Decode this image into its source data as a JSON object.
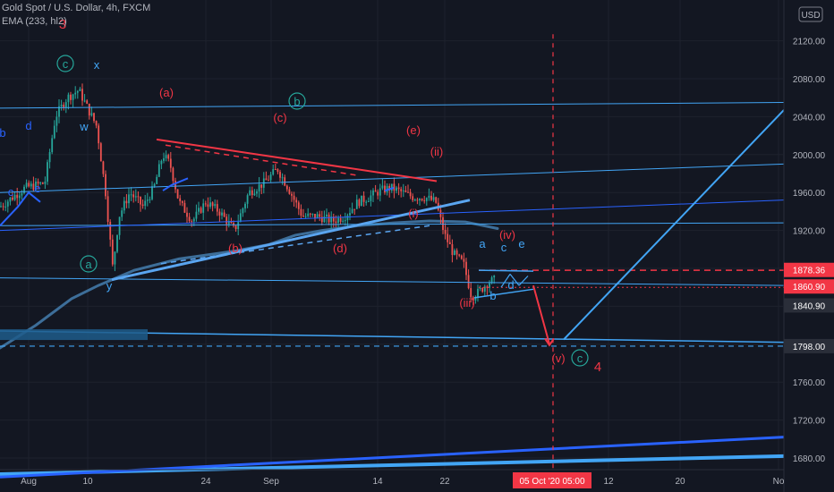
{
  "header": {
    "symbol_line": "Gold Spot / U.S. Dollar, 4h, FXCM",
    "indicator_line": "EMA (233, hl2)",
    "currency_badge": "USD"
  },
  "chart_data": {
    "type": "candlestick",
    "y_axis": {
      "ylim": [
        1660,
        2130
      ],
      "ticks": [
        1680,
        1720,
        1760,
        1800,
        1840,
        1880,
        1920,
        1960,
        2000,
        2040,
        2080,
        2120
      ],
      "tick_labels": [
        "1680.00",
        "1720.00",
        "1760.00",
        "1800.00",
        "1840.00",
        "1880.00",
        "1920.00",
        "1960.00",
        "2000.00",
        "2040.00",
        "2080.00",
        "2120.00"
      ]
    },
    "x_axis": {
      "tick_labels": [
        "Aug",
        "10",
        "24",
        "Sep",
        "14",
        "22",
        "12",
        "20",
        "No"
      ],
      "crosshair_label": "05 Oct '20   05:00"
    },
    "price_labels": [
      {
        "value": 1878.36,
        "text": "1878.36",
        "color": "#f23645"
      },
      {
        "value": 1860.9,
        "text": "1860.90",
        "color": "#f23645"
      },
      {
        "value": 1840.9,
        "text": "1840.90",
        "color": "#2a2e39"
      },
      {
        "value": 1798.0,
        "text": "1798.00",
        "color": "#2a2e39"
      }
    ],
    "wave_labels": [
      {
        "text": "3",
        "color": "#f23645"
      },
      {
        "text": "c",
        "color": "#26a69a",
        "circled": true
      },
      {
        "text": "x",
        "color": "#42a5f5"
      },
      {
        "text": "w",
        "color": "#42a5f5"
      },
      {
        "text": "y",
        "color": "#42a5f5"
      },
      {
        "text": "(a)",
        "color": "#f23645"
      },
      {
        "text": "b",
        "color": "#26a69a",
        "circled": true
      },
      {
        "text": "(c)",
        "color": "#f23645"
      },
      {
        "text": "(e)",
        "color": "#f23645"
      },
      {
        "text": "(ii)",
        "color": "#f23645"
      },
      {
        "text": "(i)",
        "color": "#f23645"
      },
      {
        "text": "(b)",
        "color": "#f23645"
      },
      {
        "text": "(d)",
        "color": "#f23645"
      },
      {
        "text": "a",
        "color": "#42a5f5"
      },
      {
        "text": "c",
        "color": "#42a5f5"
      },
      {
        "text": "e",
        "color": "#42a5f5"
      },
      {
        "text": "(iv)",
        "color": "#f23645"
      },
      {
        "text": "b",
        "color": "#42a5f5"
      },
      {
        "text": "d",
        "color": "#42a5f5"
      },
      {
        "text": "(iii)",
        "color": "#f23645"
      },
      {
        "text": "(v)",
        "color": "#f23645"
      },
      {
        "text": "c",
        "color": "#26a69a",
        "circled": true
      },
      {
        "text": "4",
        "color": "#f23645"
      },
      {
        "text": "b",
        "color": "#2962ff"
      },
      {
        "text": "d",
        "color": "#2962ff"
      },
      {
        "text": "c",
        "color": "#2962ff"
      },
      {
        "text": "e",
        "color": "#2962ff"
      },
      {
        "text": "a",
        "color": "#26a69a",
        "circled": true
      }
    ],
    "colors": {
      "background": "#131722",
      "up": "#26a69a",
      "down": "#ef5350",
      "ema": "#3d6e99",
      "trend_blue": "#42a5f5",
      "wave_red": "#f23645",
      "deep_blue": "#2962ff"
    }
  }
}
